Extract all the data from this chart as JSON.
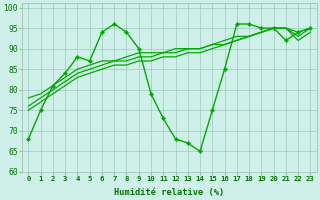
{
  "background_color": "#cff0e8",
  "grid_color": "#99ccbb",
  "line_color": "#00aa00",
  "xlabel": "Humidité relative (%)",
  "ylim": [
    60,
    101
  ],
  "xlim": [
    -0.5,
    23.5
  ],
  "yticks": [
    60,
    65,
    70,
    75,
    80,
    85,
    90,
    95,
    100
  ],
  "xticks": [
    0,
    1,
    2,
    3,
    4,
    5,
    6,
    7,
    8,
    9,
    10,
    11,
    12,
    13,
    14,
    15,
    16,
    17,
    18,
    19,
    20,
    21,
    22,
    23
  ],
  "volatile_series": [
    68,
    75,
    81,
    84,
    88,
    87,
    94,
    96,
    94,
    90,
    79,
    73,
    68,
    67,
    65,
    75,
    85,
    96,
    96,
    95,
    95,
    92,
    94,
    95
  ],
  "trend_series": [
    [
      75,
      77,
      79,
      81,
      83,
      84,
      85,
      86,
      86,
      87,
      87,
      88,
      88,
      89,
      89,
      90,
      91,
      92,
      93,
      94,
      95,
      95,
      94,
      95
    ],
    [
      76,
      78,
      80,
      82,
      84,
      85,
      86,
      87,
      87,
      88,
      88,
      89,
      89,
      90,
      90,
      91,
      91,
      92,
      93,
      94,
      95,
      95,
      93,
      95
    ],
    [
      78,
      79,
      81,
      83,
      85,
      86,
      87,
      87,
      88,
      89,
      89,
      89,
      90,
      90,
      90,
      91,
      92,
      93,
      93,
      94,
      95,
      95,
      92,
      94
    ]
  ]
}
